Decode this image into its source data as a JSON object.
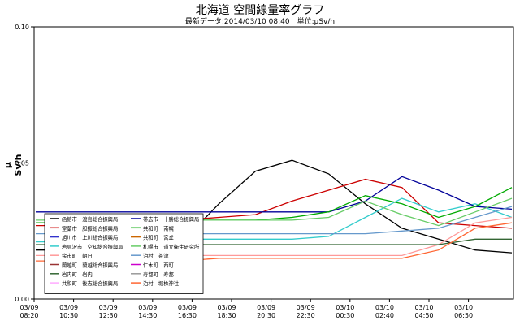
{
  "chart_data": {
    "type": "line",
    "title": "北海道 空間線量率グラフ",
    "subtitle": "最新データ:2014/03/10 08:40　単位:μSv/h",
    "ylabel": "μ Sv/h",
    "ylim": [
      0,
      0.1
    ],
    "yticks": [
      "0.00",
      "0.05",
      "0.10"
    ],
    "grid": false,
    "legend_position": "bottom-left",
    "x_tick_labels": [
      [
        "03/09",
        "08:20"
      ],
      [
        "03/09",
        "10:30"
      ],
      [
        "03/09",
        "12:30"
      ],
      [
        "03/09",
        "14:30"
      ],
      [
        "03/09",
        "16:30"
      ],
      [
        "03/09",
        "18:30"
      ],
      [
        "03/09",
        "20:30"
      ],
      [
        "03/09",
        "22:30"
      ],
      [
        "03/10",
        "00:30"
      ],
      [
        "03/10",
        "02:40"
      ],
      [
        "03/10",
        "04:50"
      ],
      [
        "03/10",
        "06:50"
      ]
    ],
    "series": [
      {
        "name": "函館市　渡島総合振興局",
        "color": "#000000",
        "values": [
          0.018,
          0.018,
          0.018,
          0.019,
          0.021,
          0.035,
          0.047,
          0.051,
          0.046,
          0.035,
          0.026,
          0.022,
          0.018,
          0.017
        ]
      },
      {
        "name": "室蘭市　胆振総合振興局",
        "color": "#cc0000",
        "values": [
          0.027,
          0.027,
          0.027,
          0.028,
          0.029,
          0.03,
          0.031,
          0.036,
          0.04,
          0.044,
          0.041,
          0.028,
          0.027,
          0.026
        ]
      },
      {
        "name": "岩見沢市　空知総合振興局",
        "color": "#33cccc",
        "values": [
          0.021,
          0.021,
          0.021,
          0.022,
          0.022,
          0.022,
          0.022,
          0.022,
          0.023,
          0.03,
          0.037,
          0.032,
          0.035,
          0.03
        ]
      },
      {
        "name": "余市町　朝日",
        "color": "#ff9999",
        "values": [
          0.016,
          0.016,
          0.016,
          0.016,
          0.016,
          0.016,
          0.016,
          0.016,
          0.016,
          0.016,
          0.016,
          0.02,
          0.028,
          0.03
        ]
      },
      {
        "name": "岩内町　岩内",
        "color": "#336633",
        "values": [
          0.02,
          0.02,
          0.02,
          0.02,
          0.02,
          0.02,
          0.02,
          0.02,
          0.02,
          0.02,
          0.02,
          0.02,
          0.022,
          0.022
        ]
      },
      {
        "name": "帯広市　十勝総合振興局",
        "color": "#000099",
        "values": [
          0.032,
          0.032,
          0.032,
          0.032,
          0.032,
          0.032,
          0.032,
          0.032,
          0.032,
          0.036,
          0.045,
          0.04,
          0.034,
          0.033
        ]
      },
      {
        "name": "共和町　南幌",
        "color": "#00aa00",
        "values": [
          0.028,
          0.028,
          0.028,
          0.028,
          0.029,
          0.029,
          0.029,
          0.03,
          0.032,
          0.038,
          0.035,
          0.03,
          0.034,
          0.041
        ]
      },
      {
        "name": "札幌市　道立衛生研究所",
        "color": "#66cc66",
        "values": [
          0.029,
          0.029,
          0.029,
          0.029,
          0.029,
          0.029,
          0.029,
          0.029,
          0.03,
          0.036,
          0.031,
          0.027,
          0.032,
          0.037
        ]
      },
      {
        "name": "泊村　茶津",
        "color": "#6699cc",
        "values": [
          0.024,
          0.024,
          0.024,
          0.024,
          0.024,
          0.024,
          0.024,
          0.024,
          0.024,
          0.024,
          0.025,
          0.026,
          0.03,
          0.034
        ]
      },
      {
        "name": "泊村　堀株神社",
        "color": "#ff6633",
        "values": [
          0.014,
          0.014,
          0.014,
          0.014,
          0.014,
          0.015,
          0.015,
          0.015,
          0.015,
          0.015,
          0.015,
          0.018,
          0.026,
          0.028
        ]
      }
    ]
  },
  "legend": {
    "rows": [
      [
        {
          "label": "函館市　渡島総合振興局",
          "color": "#000000"
        },
        {
          "label": "帯広市　十勝総合振興局",
          "color": "#000099"
        }
      ],
      [
        {
          "label": "室蘭市　胆振総合振興局",
          "color": "#cc0000"
        },
        {
          "label": "共和町　南幌",
          "color": "#00aa00"
        }
      ],
      [
        {
          "label": "旭川市　上川総合振興局",
          "color": "#3333cc"
        },
        {
          "label": "共和町　宮丘",
          "color": "#cc6600"
        }
      ],
      [
        {
          "label": "岩見沢市　空知総合振興局",
          "color": "#33cccc"
        },
        {
          "label": "札幌市　道立衛生研究所",
          "color": "#66cc66"
        }
      ],
      [
        {
          "label": "余市町　朝日",
          "color": "#ff9999"
        },
        {
          "label": "泊村　茶津",
          "color": "#6699cc"
        }
      ],
      [
        {
          "label": "蘭越町　蘭越総合振興局",
          "color": "#993333"
        },
        {
          "label": "仁木町　西町",
          "color": "#cc00cc"
        }
      ],
      [
        {
          "label": "岩内町　岩内",
          "color": "#336633"
        },
        {
          "label": "寿都町　寿都",
          "color": "#999999"
        }
      ],
      [
        {
          "label": "共和町　後志総合振興局",
          "color": "#ffaaff"
        },
        {
          "label": "泊村　堀株神社",
          "color": "#ff6633"
        }
      ]
    ]
  }
}
